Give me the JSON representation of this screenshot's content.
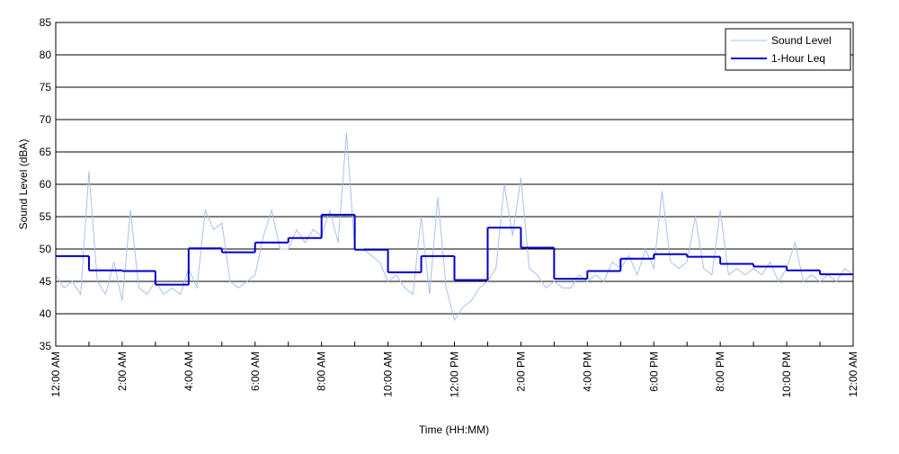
{
  "chart_data": {
    "type": "line",
    "xlabel": "Time (HH:MM)",
    "ylabel": "Sound Level (dBA)",
    "xlim": [
      0,
      24
    ],
    "xticks": [
      {
        "value": 0,
        "label": "12:00 AM"
      },
      {
        "value": 2,
        "label": "2:00 AM"
      },
      {
        "value": 4,
        "label": "4:00 AM"
      },
      {
        "value": 6,
        "label": "6:00 AM"
      },
      {
        "value": 8,
        "label": "8:00 AM"
      },
      {
        "value": 10,
        "label": "10:00 AM"
      },
      {
        "value": 12,
        "label": "12:00 PM"
      },
      {
        "value": 14,
        "label": "2:00 PM"
      },
      {
        "value": 16,
        "label": "4:00 PM"
      },
      {
        "value": 18,
        "label": "6:00 PM"
      },
      {
        "value": 20,
        "label": "8:00 PM"
      },
      {
        "value": 22,
        "label": "10:00 PM"
      },
      {
        "value": 24,
        "label": "12:00 AM"
      }
    ],
    "xminor_ticks": [
      1,
      3,
      5,
      7,
      9,
      11,
      13,
      15,
      17,
      19,
      21,
      23
    ],
    "ylim": [
      35,
      85
    ],
    "yticks": [
      35,
      40,
      45,
      50,
      55,
      60,
      65,
      70,
      75,
      80,
      85
    ],
    "grid": "y",
    "legend": "upper right",
    "series": [
      {
        "name": "Sound Level",
        "color": "#a9c0f0",
        "x": [
          0,
          0.25,
          0.5,
          0.75,
          1,
          1.25,
          1.5,
          1.75,
          2,
          2.25,
          2.5,
          2.75,
          3,
          3.25,
          3.5,
          3.75,
          4,
          4.25,
          4.5,
          4.75,
          5,
          5.25,
          5.5,
          5.75,
          6,
          6.25,
          6.5,
          6.75,
          7,
          7.25,
          7.5,
          7.75,
          8,
          8.25,
          8.5,
          8.75,
          9,
          9.25,
          9.5,
          9.75,
          10,
          10.25,
          10.5,
          10.75,
          11,
          11.25,
          11.5,
          11.75,
          12,
          12.25,
          12.5,
          12.75,
          13,
          13.25,
          13.5,
          13.75,
          14,
          14.25,
          14.5,
          14.75,
          15,
          15.25,
          15.5,
          15.75,
          16,
          16.25,
          16.5,
          16.75,
          17,
          17.25,
          17.5,
          17.75,
          18,
          18.25,
          18.5,
          18.75,
          19,
          19.25,
          19.5,
          19.75,
          20,
          20.25,
          20.5,
          20.75,
          21,
          21.25,
          21.5,
          21.75,
          22,
          22.25,
          22.5,
          22.75,
          23,
          23.25,
          23.5,
          23.75,
          24
        ],
        "values": [
          46,
          44,
          45,
          43,
          62,
          45,
          43,
          48,
          42,
          56,
          44,
          43,
          45,
          43,
          44,
          43,
          47,
          44,
          56,
          53,
          54,
          45,
          44,
          45,
          46,
          52,
          56,
          50,
          50,
          53,
          51,
          53,
          52,
          56,
          51,
          68,
          50,
          50,
          49,
          48,
          45,
          46,
          44,
          43,
          55,
          43,
          58,
          44,
          39,
          41,
          42,
          44,
          45,
          47,
          60,
          52,
          61,
          47,
          46,
          44,
          45,
          44,
          44,
          46,
          45,
          46,
          45,
          48,
          47,
          49,
          46,
          50,
          47,
          59,
          48,
          47,
          48,
          55,
          47,
          46,
          56,
          46,
          47,
          46,
          47,
          46,
          48,
          45,
          47,
          51,
          45,
          46,
          45,
          46,
          45,
          47,
          46
        ]
      },
      {
        "name": "1-Hour Leq",
        "color": "#0000c8",
        "step": "post",
        "x": [
          0,
          1,
          2,
          3,
          4,
          5,
          6,
          7,
          8,
          9,
          10,
          11,
          12,
          13,
          14,
          15,
          16,
          17,
          18,
          19,
          20,
          21,
          22,
          23
        ],
        "values": [
          48.9,
          46.7,
          46.6,
          44.5,
          50.1,
          49.5,
          51.0,
          51.7,
          55.3,
          49.9,
          46.4,
          48.9,
          45.2,
          53.3,
          50.2,
          45.4,
          46.6,
          48.5,
          49.2,
          48.8,
          47.7,
          47.3,
          46.7,
          46.1
        ]
      }
    ]
  }
}
